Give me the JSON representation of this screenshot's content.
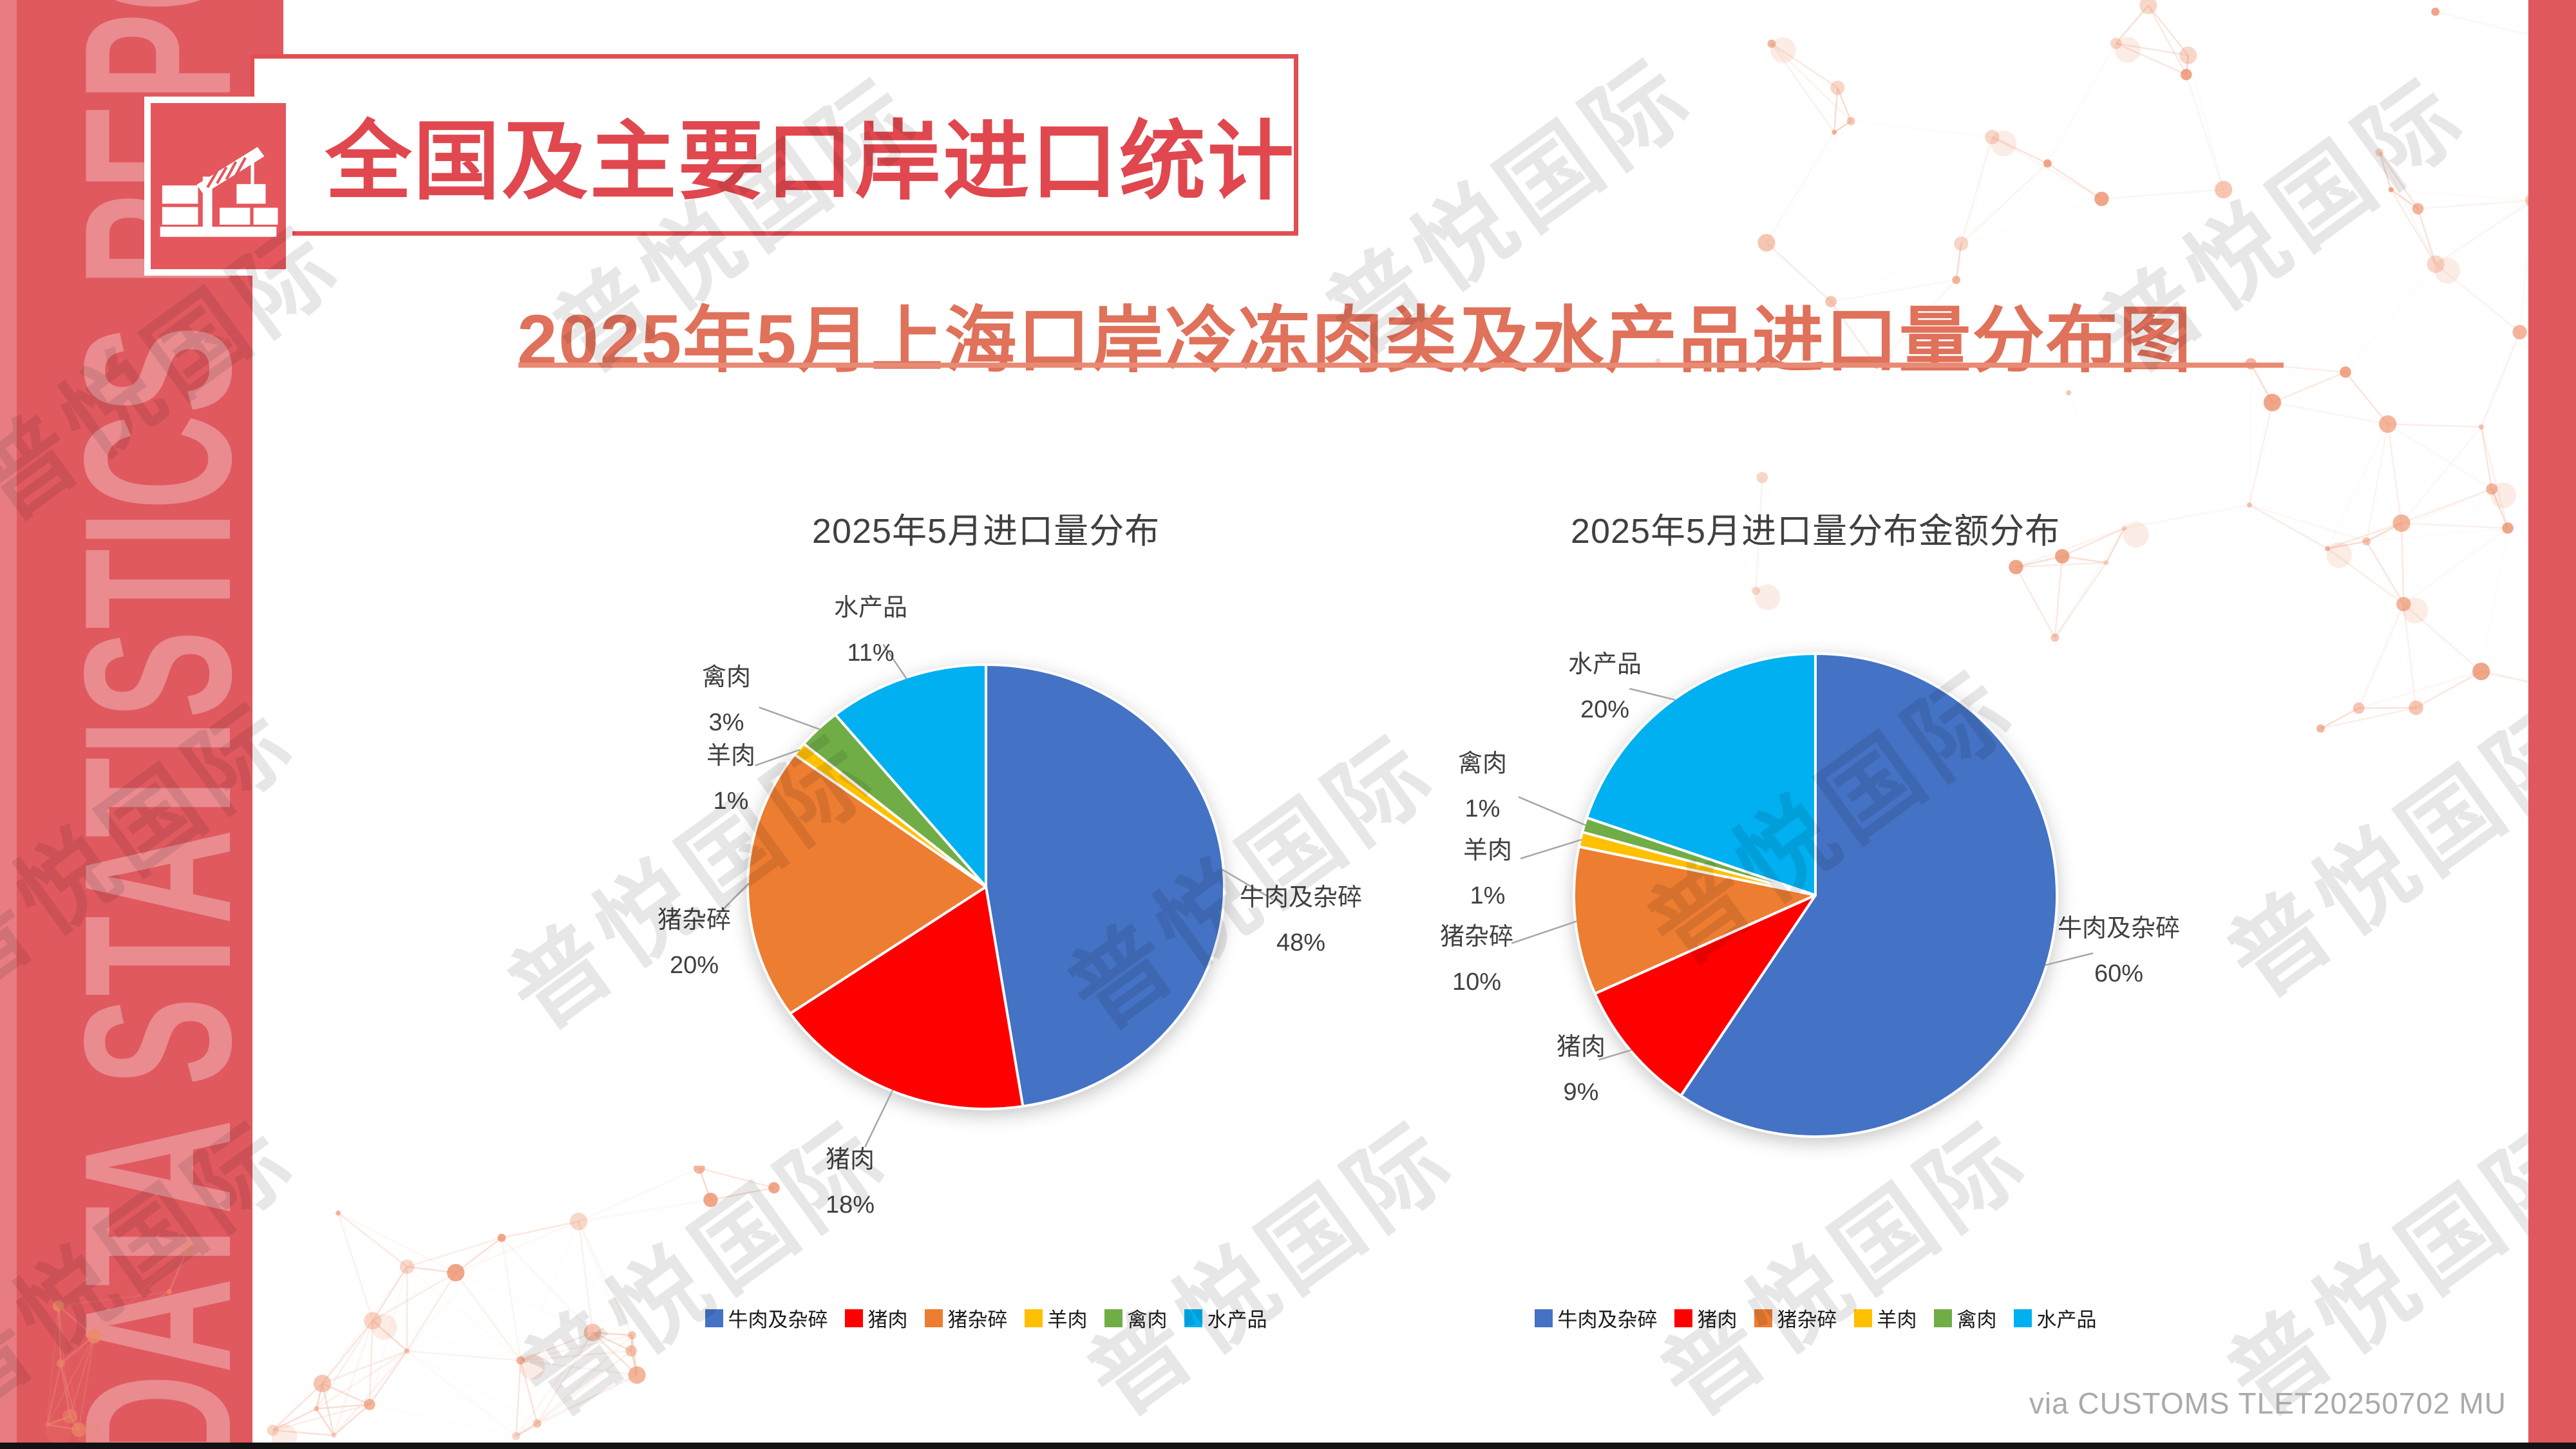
{
  "slide": {
    "background": "#FFFFFF",
    "accent_red": "#E0575D"
  },
  "sidebar": {
    "vertical_text": "DATA STATISTICS REPORT"
  },
  "header": {
    "title": "全国及主要口岸进口统计",
    "icon": "port-crane-icon"
  },
  "subtitle": {
    "text": "2025年5月上海口岸冷冻肉类及水产品进口量分布图"
  },
  "watermark_text": "普悦国际",
  "footer": {
    "source": "via CUSTOMS TLET20250702 MU"
  },
  "chart_data": [
    {
      "type": "pie",
      "title": "2025年5月进口量分布",
      "categories": [
        "牛肉及杂碎",
        "猪肉",
        "猪杂碎",
        "羊肉",
        "禽肉",
        "水产品"
      ],
      "values": [
        48,
        18,
        20,
        1,
        3,
        11
      ],
      "unit": "%",
      "data_labels": [
        "48%",
        "18%",
        "20%",
        "1%",
        "3%",
        "11%"
      ],
      "colors": [
        "#4472C4",
        "#FF0000",
        "#ED7D31",
        "#FFC000",
        "#70AD47",
        "#00B0F0"
      ],
      "legend": [
        "牛肉及杂碎",
        "猪肉",
        "猪杂碎",
        "羊肉",
        "禽肉",
        "水产品"
      ],
      "legend_position": "bottom",
      "start_angle_deg": 0,
      "direction": "clockwise"
    },
    {
      "type": "pie",
      "title": "2025年5月进口量分布金额分布",
      "categories": [
        "牛肉及杂碎",
        "猪肉",
        "猪杂碎",
        "羊肉",
        "禽肉",
        "水产品"
      ],
      "values": [
        60,
        9,
        10,
        1,
        1,
        20
      ],
      "unit": "%",
      "data_labels": [
        "60%",
        "9%",
        "10%",
        "1%",
        "1%",
        "20%"
      ],
      "colors": [
        "#4472C4",
        "#FF0000",
        "#ED7D31",
        "#FFC000",
        "#70AD47",
        "#00B0F0"
      ],
      "legend": [
        "牛肉及杂碎",
        "猪肉",
        "猪杂碎",
        "羊肉",
        "禽肉",
        "水产品"
      ],
      "legend_position": "bottom",
      "start_angle_deg": 0,
      "direction": "clockwise"
    }
  ]
}
